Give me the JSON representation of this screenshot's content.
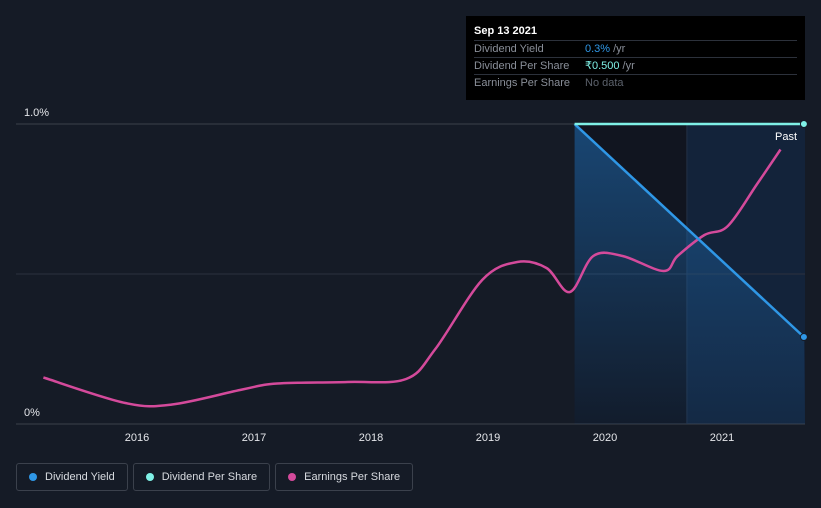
{
  "tooltip": {
    "date": "Sep 13 2021",
    "rows": [
      {
        "label": "Dividend Yield",
        "value": "0.3%",
        "unit": "/yr"
      },
      {
        "label": "Dividend Per Share",
        "value": "₹0.500",
        "unit": "/yr"
      },
      {
        "label": "Earnings Per Share",
        "value": "No data",
        "unit": ""
      }
    ]
  },
  "legend": [
    {
      "label": "Dividend Yield",
      "color": "#2f97e6"
    },
    {
      "label": "Dividend Per Share",
      "color": "#7ff0e6"
    },
    {
      "label": "Earnings Per Share",
      "color": "#d44a9b"
    }
  ],
  "chart_data": {
    "type": "line",
    "title": "",
    "xlabel": "",
    "ylabel": "",
    "ylim": [
      0,
      1.0
    ],
    "xlim": [
      2015.1,
      2021.7
    ],
    "y_ticks": [
      "1.0%",
      "0%"
    ],
    "x_ticks": [
      2016,
      2017,
      2018,
      2019,
      2020,
      2021
    ],
    "x_tick_labels": [
      "2016",
      "2017",
      "2018",
      "2019",
      "2020",
      "2021"
    ],
    "past_label": "Past",
    "past_region_start": 2020.7,
    "series": [
      {
        "name": "Dividend Yield",
        "color": "#2f97e6",
        "x": [
          2019.74,
          2021.7
        ],
        "y": [
          1.0,
          0.29
        ]
      },
      {
        "name": "Dividend Per Share",
        "color": "#7ff0e6",
        "x": [
          2019.74,
          2021.7
        ],
        "y": [
          1.0,
          1.0
        ]
      },
      {
        "name": "Earnings Per Share",
        "color": "#d44a9b",
        "x": [
          2015.2,
          2015.9,
          2016.3,
          2016.9,
          2017.2,
          2017.8,
          2018.3,
          2018.55,
          2018.95,
          2019.25,
          2019.5,
          2019.7,
          2019.9,
          2020.15,
          2020.5,
          2020.62,
          2020.85,
          2021.05,
          2021.3,
          2021.5
        ],
        "y": [
          0.155,
          0.07,
          0.065,
          0.115,
          0.135,
          0.14,
          0.15,
          0.25,
          0.48,
          0.54,
          0.52,
          0.44,
          0.56,
          0.56,
          0.51,
          0.56,
          0.63,
          0.66,
          0.8,
          0.915
        ]
      }
    ]
  }
}
